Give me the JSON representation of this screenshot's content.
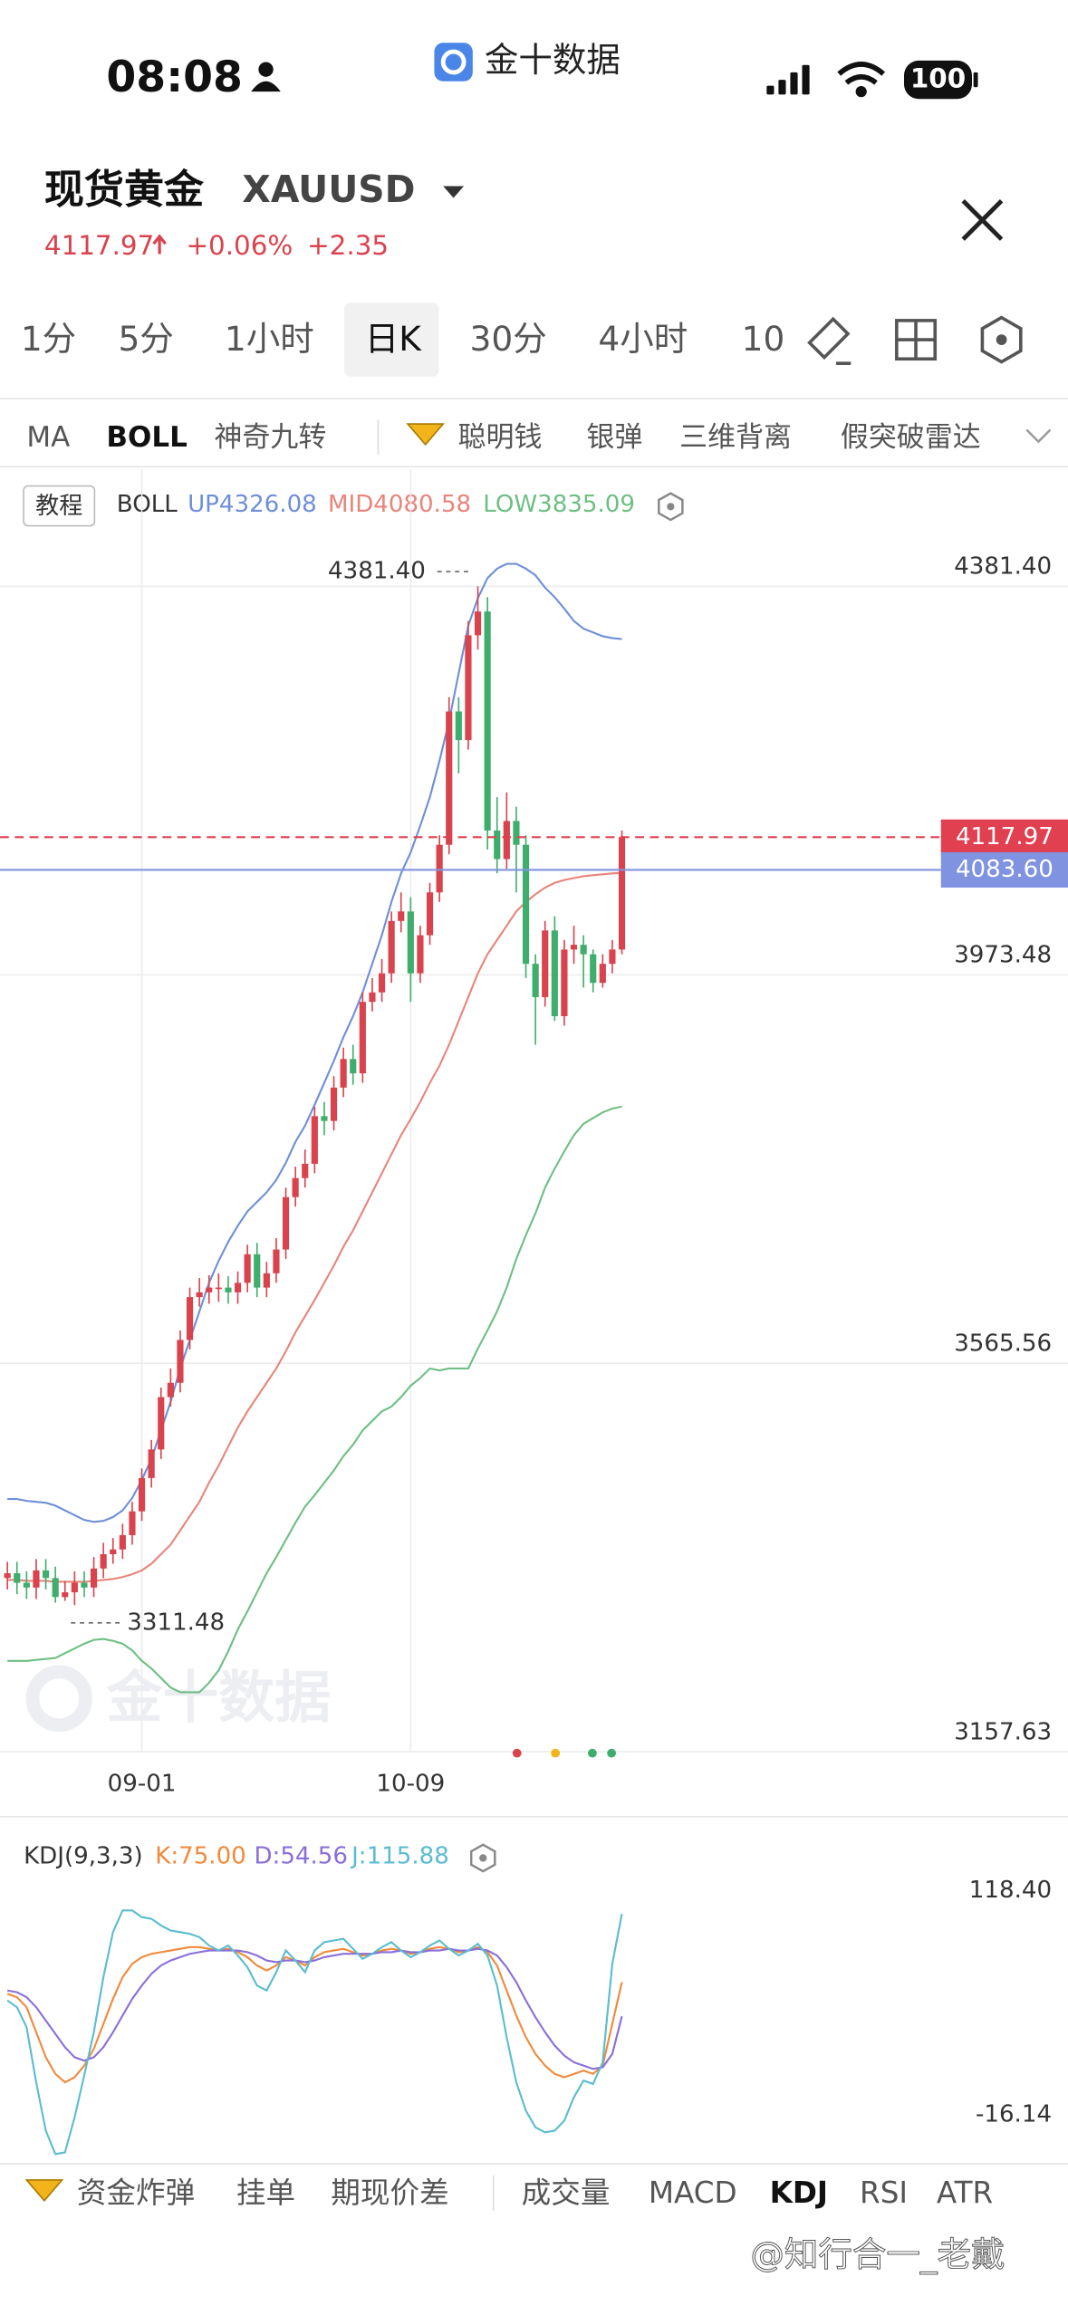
{
  "status_bar": {
    "time": "08:08",
    "app": "金十数据",
    "battery": "100"
  },
  "header": {
    "title": "现货黄金",
    "symbol": "XAUUSD",
    "price": "4117.97",
    "change_pct": "+0.06%",
    "change": "+2.35"
  },
  "periods": [
    "1分",
    "5分",
    "1小时",
    "日K",
    "30分",
    "4小时",
    "10"
  ],
  "active_period": 3,
  "indicators_top": [
    "MA",
    "BOLL",
    "神奇九转",
    "聪明钱",
    "银弹",
    "三维背离",
    "假突破雷达"
  ],
  "active_indicator_top": 1,
  "boll_header": {
    "tag": "教程",
    "name": "BOLL",
    "up": "UP4326.08",
    "mid": "MID4080.58",
    "low": "LOW3835.09"
  },
  "chart_watermark": "金十数据",
  "kdj_header": {
    "name": "KDJ(9,3,3)",
    "k": "K:75.00",
    "d": "D:54.56",
    "j": "J:115.88"
  },
  "indicators_bottom": [
    "资金炸弹",
    "挂单",
    "期现价差",
    "成交量",
    "MACD",
    "KDJ",
    "RSI",
    "ATR"
  ],
  "active_indicator_bottom": 5,
  "watermark": "@知行合一_老戴",
  "chart_data": [
    {
      "type": "candlestick",
      "up_color": "#d9434e",
      "down_color": "#3fae6c",
      "grid": true,
      "categories": [
        null,
        null,
        null,
        null,
        null,
        null,
        null,
        null,
        null,
        null,
        null,
        null,
        null,
        null,
        "09-01",
        null,
        null,
        null,
        null,
        null,
        null,
        null,
        null,
        null,
        null,
        null,
        null,
        null,
        null,
        null,
        null,
        null,
        null,
        null,
        null,
        null,
        null,
        null,
        null,
        null,
        null,
        null,
        "10-09",
        null,
        null,
        null,
        null,
        null,
        null,
        null,
        null,
        null,
        null,
        null,
        null,
        null,
        null,
        null,
        null,
        null,
        null,
        null,
        null,
        null,
        null
      ],
      "open": [
        3340,
        3345,
        3335,
        3330,
        3348,
        3340,
        3320,
        3325,
        3335,
        3330,
        3350,
        3365,
        3370,
        3385,
        3410,
        3445,
        3475,
        3530,
        3545,
        3590,
        3635,
        3640,
        3645,
        3645,
        3640,
        3650,
        3680,
        3645,
        3660,
        3685,
        3740,
        3760,
        3775,
        3825,
        3820,
        3855,
        3885,
        3870,
        3945,
        3955,
        3975,
        4030,
        4040,
        3975,
        4015,
        4060,
        4110,
        4250,
        4220,
        4330,
        4355,
        4125,
        4095,
        4135,
        4110,
        3985,
        3950,
        4020,
        3930,
        4000,
        4005,
        3995,
        3965,
        3985,
        4000
      ],
      "high": [
        3357,
        3357,
        3347,
        3360,
        3360,
        3352,
        3337,
        3347,
        3347,
        3362,
        3377,
        3382,
        3397,
        3420,
        3455,
        3485,
        3540,
        3560,
        3600,
        3645,
        3655,
        3658,
        3660,
        3657,
        3662,
        3690,
        3692,
        3672,
        3697,
        3750,
        3772,
        3790,
        3835,
        3840,
        3867,
        3897,
        3900,
        3955,
        3970,
        3990,
        4040,
        4060,
        4055,
        4025,
        4070,
        4120,
        4265,
        4265,
        4345,
        4381.4,
        4370,
        4160,
        4165,
        4150,
        4120,
        3995,
        4030,
        4035,
        4010,
        4025,
        4015,
        4000,
        3995,
        4010,
        4125
      ],
      "low": [
        3328,
        3323,
        3318,
        3318,
        3328,
        3314,
        3316,
        3311.48,
        3320,
        3320,
        3340,
        3355,
        3360,
        3375,
        3400,
        3435,
        3465,
        3520,
        3535,
        3580,
        3625,
        3628,
        3630,
        3628,
        3628,
        3640,
        3635,
        3635,
        3650,
        3675,
        3730,
        3750,
        3765,
        3805,
        3810,
        3845,
        3858,
        3860,
        3935,
        3945,
        3965,
        4018,
        3945,
        3965,
        4005,
        4050,
        4100,
        4185,
        4210,
        4315,
        4105,
        4080,
        4085,
        4060,
        3970,
        3900,
        3940,
        3925,
        3920,
        3985,
        3960,
        3955,
        3960,
        3975,
        3995
      ],
      "close": [
        3345,
        3335,
        3330,
        3348,
        3340,
        3320,
        3325,
        3335,
        3330,
        3350,
        3365,
        3370,
        3385,
        3410,
        3445,
        3475,
        3530,
        3545,
        3590,
        3635,
        3640,
        3645,
        3645,
        3640,
        3650,
        3680,
        3645,
        3660,
        3685,
        3740,
        3760,
        3775,
        3825,
        3820,
        3855,
        3885,
        3870,
        3945,
        3955,
        3975,
        4030,
        4040,
        3975,
        4015,
        4060,
        4110,
        4250,
        4220,
        4330,
        4355,
        4125,
        4095,
        4135,
        4110,
        3985,
        3950,
        4020,
        3930,
        4000,
        4005,
        3995,
        3965,
        3985,
        4000,
        4117.97
      ],
      "series": [
        {
          "color": "#6f8fd8",
          "values": [
            3423,
            3423,
            3421,
            3420,
            3419,
            3416,
            3411,
            3406,
            3401,
            3399,
            3400,
            3404,
            3411,
            3424,
            3443,
            3465,
            3495,
            3525,
            3560,
            3590,
            3620,
            3650,
            3673,
            3693,
            3710,
            3725,
            3735,
            3745,
            3758,
            3776,
            3798,
            3815,
            3837,
            3860,
            3883,
            3908,
            3930,
            3955,
            3985,
            4015,
            4050,
            4080,
            4102,
            4130,
            4160,
            4198,
            4240,
            4290,
            4340,
            4369,
            4390,
            4400,
            4405,
            4405,
            4400,
            4393,
            4380,
            4370,
            4358,
            4345,
            4337,
            4333,
            4329,
            4327,
            4326.08
          ]
        },
        {
          "color": "#e8857b",
          "values": [
            3338,
            3338,
            3337,
            3337,
            3337,
            3336,
            3336,
            3336,
            3336,
            3337,
            3338,
            3339,
            3341,
            3344,
            3348,
            3355,
            3365,
            3375,
            3390,
            3405,
            3420,
            3440,
            3458,
            3478,
            3498,
            3515,
            3530,
            3545,
            3560,
            3578,
            3598,
            3615,
            3632,
            3650,
            3668,
            3688,
            3705,
            3725,
            3745,
            3765,
            3785,
            3805,
            3822,
            3840,
            3860,
            3878,
            3900,
            3925,
            3950,
            3975,
            3995,
            4010,
            4025,
            4040,
            4050,
            4058,
            4065,
            4070,
            4073,
            4075,
            4077,
            4078,
            4079,
            4080,
            4080.58
          ]
        },
        {
          "color": "#6fbf84",
          "values": [
            3253,
            3253,
            3253,
            3254,
            3255,
            3256,
            3261,
            3266,
            3271,
            3275,
            3276,
            3274,
            3271,
            3264,
            3253,
            3245,
            3235,
            3225,
            3220,
            3220,
            3220,
            3230,
            3243,
            3263,
            3286,
            3305,
            3325,
            3345,
            3362,
            3380,
            3398,
            3415,
            3427,
            3440,
            3453,
            3468,
            3480,
            3495,
            3505,
            3515,
            3520,
            3530,
            3542,
            3550,
            3560,
            3558,
            3560,
            3560,
            3560,
            3581,
            3600,
            3620,
            3645,
            3675,
            3700,
            3723,
            3750,
            3770,
            3788,
            3805,
            3817,
            3823,
            3829,
            3833,
            3835.09
          ]
        }
      ],
      "ylim": [
        3157.63,
        4503.9
      ],
      "yticks": [
        {
          "value": 4381.4,
          "label": "4381.40"
        },
        {
          "value": 3973.48,
          "label": "3973.48"
        },
        {
          "value": 3565.56,
          "label": "3565.56"
        },
        {
          "value": 3157.63,
          "label": "3157.63"
        }
      ],
      "annotations": [
        {
          "value": 4381.4,
          "label": "4381.40"
        },
        {
          "value": 3311.48,
          "label": "3311.48"
        }
      ],
      "price_lines": [
        {
          "value": 4117.97,
          "label": "4117.97",
          "color": "#e0404f"
        },
        {
          "value": 4083.6,
          "label": "4083.60",
          "color": "#7f93e0"
        }
      ]
    },
    {
      "type": "line",
      "grid": false,
      "series": [
        {
          "color": "#f08a3c",
          "values": [
            68,
            66,
            60,
            45,
            30,
            20,
            15,
            18,
            25,
            35,
            50,
            65,
            78,
            86,
            90,
            92,
            93,
            94,
            95,
            96,
            96,
            95,
            94,
            95,
            93,
            90,
            85,
            82,
            85,
            90,
            88,
            85,
            90,
            93,
            94,
            95,
            93,
            91,
            92,
            94,
            95,
            94,
            92,
            93,
            95,
            96,
            95,
            93,
            94,
            96,
            93,
            85,
            70,
            55,
            42,
            32,
            25,
            20,
            18,
            20,
            22,
            20,
            25,
            50,
            75
          ]
        },
        {
          "color": "#8a6fd8",
          "values": [
            70,
            69,
            66,
            60,
            52,
            44,
            36,
            30,
            28,
            30,
            36,
            45,
            55,
            65,
            73,
            80,
            85,
            88,
            90,
            92,
            93,
            94,
            94,
            94,
            94,
            93,
            91,
            88,
            87,
            88,
            88,
            87,
            88,
            90,
            91,
            92,
            92,
            92,
            92,
            93,
            93,
            94,
            93,
            93,
            94,
            94,
            95,
            94,
            94,
            95,
            94,
            91,
            84,
            75,
            64,
            54,
            45,
            37,
            31,
            27,
            25,
            23,
            24,
            32,
            54.56
          ]
        },
        {
          "color": "#5bbcd0",
          "values": [
            64,
            60,
            48,
            15,
            -14,
            -28,
            -27,
            -6,
            19,
            45,
            78,
            105,
            118,
            118,
            114,
            113,
            109,
            106,
            105,
            104,
            102,
            97,
            94,
            97,
            91,
            84,
            73,
            70,
            81,
            94,
            88,
            81,
            94,
            99,
            100,
            101,
            95,
            89,
            92,
            96,
            99,
            94,
            90,
            93,
            97,
            100,
            95,
            91,
            94,
            98,
            91,
            73,
            42,
            15,
            -2,
            -12,
            -15,
            -14,
            -8,
            6,
            16,
            14,
            27,
            86,
            115.88
          ]
        }
      ],
      "ylim": [
        -29.4,
        138.8
      ],
      "yticks": [
        {
          "value": 118.4,
          "label": "118.40"
        },
        {
          "value": -16.14,
          "label": "-16.14"
        }
      ]
    }
  ]
}
